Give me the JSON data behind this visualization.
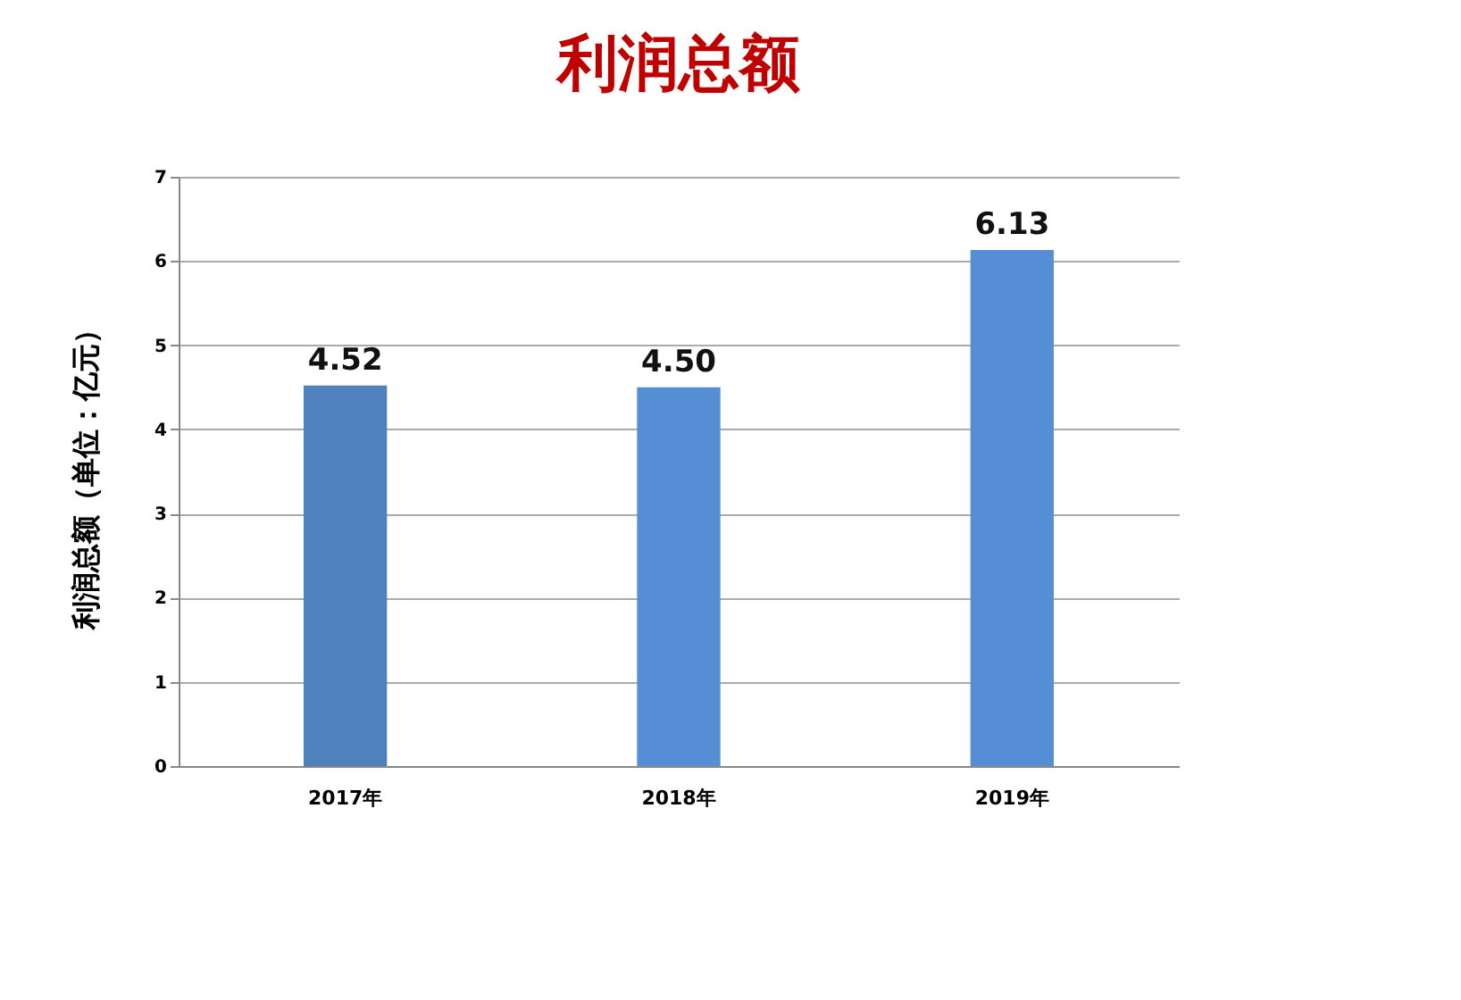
{
  "chart_data": {
    "type": "bar",
    "title": "利润总额",
    "ylabel": "利润总额（单位：亿元）",
    "categories": [
      "2017年",
      "2018年",
      "2019年"
    ],
    "values": [
      4.52,
      4.5,
      6.13
    ],
    "colors": [
      "#4f81bd",
      "#558ed5",
      "#558ed5"
    ],
    "value_labels": [
      "4.52",
      "4.50",
      "6.13"
    ],
    "ylim": [
      0,
      7
    ],
    "yticks": [
      0,
      1,
      2,
      3,
      4,
      5,
      6,
      7
    ],
    "grid": "y"
  }
}
